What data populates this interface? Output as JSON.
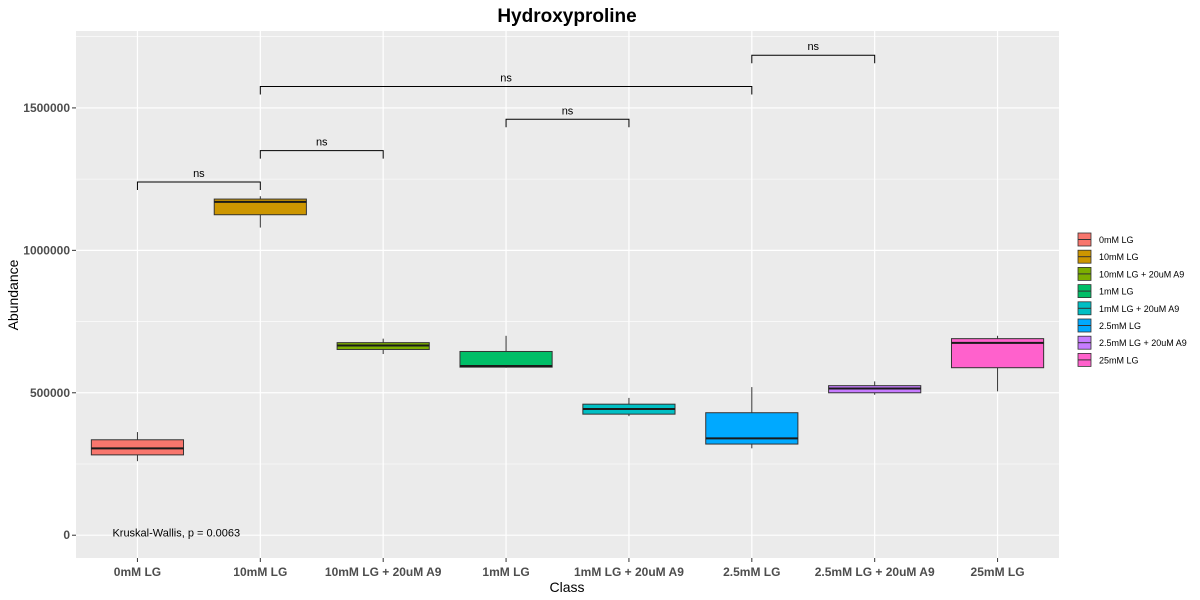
{
  "chart_data": {
    "type": "box",
    "title": "Hydroxyproline",
    "xlabel": "Class",
    "ylabel": "Abundance",
    "ylim": [
      -80000,
      1770000
    ],
    "yticks": [
      0,
      500000,
      1000000,
      1500000
    ],
    "ytick_labels": [
      "0",
      "500000",
      "1000000",
      "1500000"
    ],
    "grid": true,
    "legend_position": "right",
    "categories": [
      "0mM LG",
      "10mM LG",
      "10mM LG + 20uM A9",
      "1mM LG",
      "1mM LG + 20uM A9",
      "2.5mM LG",
      "2.5mM LG + 20uM A9",
      "25mM LG"
    ],
    "boxes": [
      {
        "category": "0mM LG",
        "color": "#F8766D",
        "whisker_low": 260000,
        "q1": 282000,
        "median": 305000,
        "q3": 335000,
        "whisker_high": 362000
      },
      {
        "category": "10mM LG",
        "color": "#CD9600",
        "whisker_low": 1080000,
        "q1": 1125000,
        "median": 1170000,
        "q3": 1180000,
        "whisker_high": 1190000
      },
      {
        "category": "10mM LG + 20uM A9",
        "color": "#7CAE00",
        "whisker_low": 636000,
        "q1": 652000,
        "median": 666000,
        "q3": 676000,
        "whisker_high": 690000
      },
      {
        "category": "1mM LG",
        "color": "#00BE67",
        "whisker_low": 588000,
        "q1": 590000,
        "median": 594000,
        "q3": 645000,
        "whisker_high": 700000
      },
      {
        "category": "1mM LG + 20uM A9",
        "color": "#00BFC4",
        "whisker_low": 418000,
        "q1": 425000,
        "median": 443000,
        "q3": 460000,
        "whisker_high": 482000
      },
      {
        "category": "2.5mM LG",
        "color": "#00A9FF",
        "whisker_low": 305000,
        "q1": 320000,
        "median": 340000,
        "q3": 430000,
        "whisker_high": 520000
      },
      {
        "category": "2.5mM LG + 20uM A9",
        "color": "#C77CFF",
        "whisker_low": 493000,
        "q1": 500000,
        "median": 515000,
        "q3": 525000,
        "whisker_high": 540000
      },
      {
        "category": "25mM LG",
        "color": "#FF61CC",
        "whisker_low": 505000,
        "q1": 588000,
        "median": 675000,
        "q3": 690000,
        "whisker_high": 700000
      }
    ],
    "comparisons": [
      {
        "from": "0mM LG",
        "to": "10mM LG",
        "y": 1240000,
        "label": "ns"
      },
      {
        "from": "10mM LG",
        "to": "10mM LG + 20uM A9",
        "y": 1350000,
        "label": "ns"
      },
      {
        "from": "1mM LG",
        "to": "1mM LG + 20uM A9",
        "y": 1460000,
        "label": "ns"
      },
      {
        "from": "10mM LG",
        "to": "2.5mM LG",
        "y": 1575000,
        "label": "ns"
      },
      {
        "from": "2.5mM LG",
        "to": "2.5mM LG + 20uM A9",
        "y": 1685000,
        "label": "ns"
      }
    ],
    "annotations": [
      {
        "text": "Kruskal-Wallis, p = 0.0063",
        "x_category": "0mM LG",
        "y": 10000
      }
    ],
    "legend": {
      "entries": [
        "0mM LG",
        "10mM LG",
        "10mM LG + 20uM A9",
        "1mM LG",
        "1mM LG + 20uM A9",
        "2.5mM LG",
        "2.5mM LG + 20uM A9",
        "25mM LG"
      ]
    }
  }
}
